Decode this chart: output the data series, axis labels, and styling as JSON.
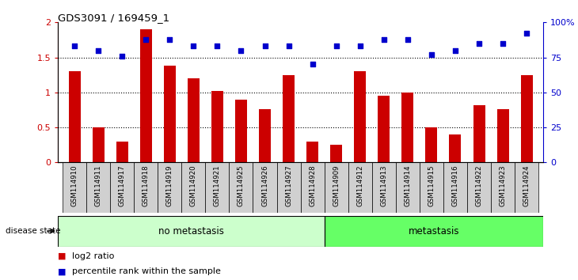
{
  "title": "GDS3091 / 169459_1",
  "samples": [
    "GSM114910",
    "GSM114911",
    "GSM114917",
    "GSM114918",
    "GSM114919",
    "GSM114920",
    "GSM114921",
    "GSM114925",
    "GSM114926",
    "GSM114927",
    "GSM114928",
    "GSM114909",
    "GSM114912",
    "GSM114913",
    "GSM114914",
    "GSM114915",
    "GSM114916",
    "GSM114922",
    "GSM114923",
    "GSM114924"
  ],
  "log2_ratio": [
    1.3,
    0.5,
    0.3,
    1.9,
    1.38,
    1.2,
    1.02,
    0.9,
    0.76,
    1.25,
    0.3,
    0.25,
    1.3,
    0.95,
    1.0,
    0.5,
    0.4,
    0.82,
    0.76,
    1.25
  ],
  "percentile_rank": [
    83,
    80,
    76,
    88,
    88,
    83,
    83,
    80,
    83,
    83,
    70,
    83,
    83,
    88,
    88,
    77,
    80,
    85,
    85,
    92
  ],
  "no_metastasis_count": 11,
  "metastasis_count": 9,
  "bar_color": "#cc0000",
  "dot_color": "#0000cc",
  "ylim_left": [
    0,
    2
  ],
  "ylim_right": [
    0,
    100
  ],
  "yticks_left": [
    0,
    0.5,
    1.0,
    1.5,
    2.0
  ],
  "ytick_labels_left": [
    "0",
    "0.5",
    "1",
    "1.5",
    "2"
  ],
  "yticks_right": [
    0,
    25,
    50,
    75,
    100
  ],
  "ytick_labels_right": [
    "0",
    "25",
    "50",
    "75",
    "100%"
  ],
  "hlines": [
    0.5,
    1.0,
    1.5
  ],
  "no_metastasis_label": "no metastasis",
  "metastasis_label": "metastasis",
  "disease_state_label": "disease state",
  "legend_bar_label": "log2 ratio",
  "legend_dot_label": "percentile rank within the sample",
  "no_metastasis_color": "#ccffcc",
  "metastasis_color": "#66ff66",
  "tick_bg_color": "#d0d0d0",
  "fig_width": 7.3,
  "fig_height": 3.54,
  "dpi": 100
}
